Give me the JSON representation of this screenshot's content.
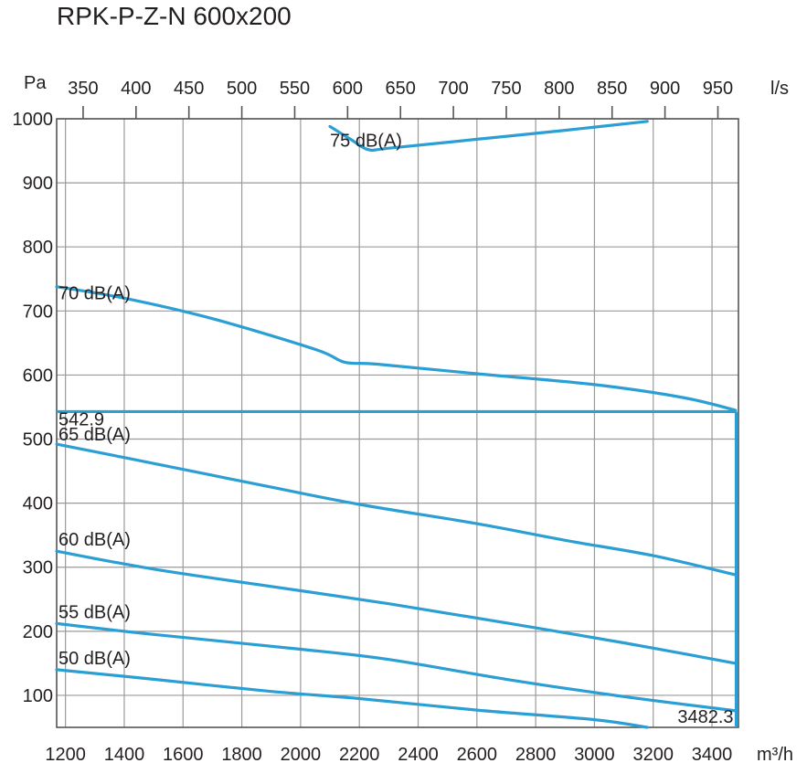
{
  "chart_data": {
    "type": "line",
    "title": "RPK-P-Z-N 600x200",
    "y_unit": "Pa",
    "x_unit_bottom": "m³/h",
    "x_unit_top": "l/s",
    "xlim": [
      1170,
      3490
    ],
    "ylim": [
      50,
      1000
    ],
    "x_ticks": [
      1200,
      1400,
      1600,
      1800,
      2000,
      2200,
      2400,
      2600,
      2800,
      3000,
      3200,
      3400
    ],
    "y_ticks": [
      100,
      200,
      300,
      400,
      500,
      600,
      700,
      800,
      900,
      1000
    ],
    "top_ticks": [
      350,
      400,
      450,
      500,
      550,
      600,
      650,
      700,
      750,
      800,
      850,
      900,
      950
    ],
    "line_color": "#2b9fd4",
    "series": [
      {
        "name": "75 dB(A)",
        "x": [
          2100,
          2170,
          2230,
          2300,
          2600,
          2900,
          3180
        ],
        "y": [
          988,
          968,
          952,
          954,
          968,
          982,
          996
        ]
      },
      {
        "name": "70 dB(A)",
        "x": [
          1170,
          1400,
          1700,
          2050,
          2150,
          2260,
          2600,
          3000,
          3300,
          3480
        ],
        "y": [
          738,
          720,
          688,
          640,
          620,
          617,
          602,
          585,
          565,
          545
        ]
      },
      {
        "name": "65 dB(A)",
        "x": [
          1170,
          1500,
          1900,
          2200,
          2600,
          2900,
          3200,
          3480
        ],
        "y": [
          492,
          462,
          425,
          398,
          368,
          342,
          318,
          288
        ]
      },
      {
        "name": "60 dB(A)",
        "x": [
          1170,
          1500,
          1900,
          2300,
          2700,
          3100,
          3480
        ],
        "y": [
          325,
          297,
          270,
          243,
          213,
          182,
          150
        ]
      },
      {
        "name": "55 dB(A)",
        "x": [
          1170,
          1500,
          2000,
          2300,
          2700,
          3100,
          3480
        ],
        "y": [
          212,
          195,
          172,
          156,
          125,
          98,
          76
        ]
      },
      {
        "name": "50 dB(A)",
        "x": [
          1170,
          1500,
          1900,
          2200,
          2600,
          3000,
          3180
        ],
        "y": [
          140,
          125,
          106,
          95,
          77,
          62,
          50
        ]
      }
    ],
    "operating_point": {
      "x": 3482.3,
      "y": 542.9,
      "x_label": "3482.3",
      "y_label": "542.9"
    }
  }
}
